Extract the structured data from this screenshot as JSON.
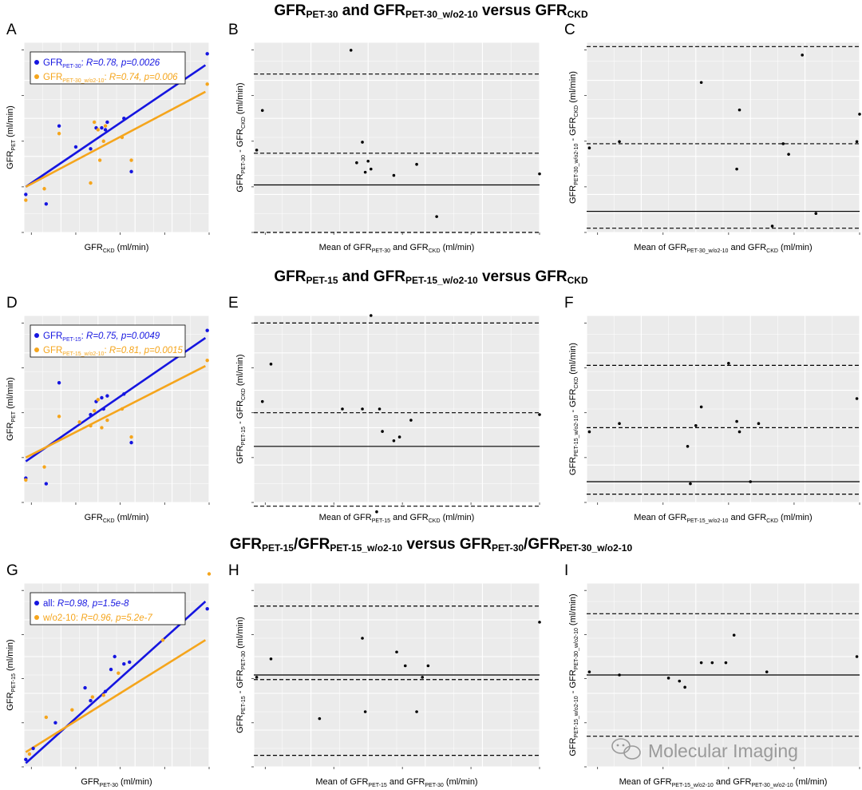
{
  "colors": {
    "series_a": "#1515e0",
    "series_b": "#f5a51c",
    "panel_bg": "#ebebeb",
    "grid": "#ffffff",
    "point": "#000000"
  },
  "watermark": {
    "text": "Molecular Imaging",
    "icon": "wechat-icon"
  },
  "rows": [
    {
      "title": [
        [
          "GFR"
        ],
        [
          "PET-30",
          "sub"
        ],
        [
          " and GFR"
        ],
        [
          "PET-30_w/o2-10",
          "sub"
        ],
        [
          " versus GFR"
        ],
        [
          "CKD",
          "sub"
        ]
      ]
    },
    {
      "title": [
        [
          "GFR"
        ],
        [
          "PET-15",
          "sub"
        ],
        [
          " and GFR"
        ],
        [
          "PET-15_w/o2-10",
          "sub"
        ],
        [
          " versus GFR"
        ],
        [
          "CKD",
          "sub"
        ]
      ]
    },
    {
      "title": [
        [
          "GFR"
        ],
        [
          "PET-15",
          "sub"
        ],
        [
          "/GFR"
        ],
        [
          "PET-15_w/o2-10",
          "sub"
        ],
        [
          " versus GFR"
        ],
        [
          "PET-30",
          "sub"
        ],
        [
          "/GFR"
        ],
        [
          "PET-30_w/o2-10",
          "sub"
        ]
      ]
    }
  ],
  "chart_data": [
    {
      "panel": "A",
      "type": "scatter",
      "xlim": [
        0,
        10
      ],
      "ylim": [
        0,
        10
      ],
      "xlabel": [
        [
          "GFR"
        ],
        [
          "CKD",
          "sub"
        ],
        [
          " (ml/min)"
        ]
      ],
      "ylabel": [
        [
          "GFR"
        ],
        [
          "PET",
          "sub"
        ],
        [
          " (ml/min)"
        ]
      ],
      "legend": {
        "position": "top-left",
        "entries": [
          [
            [
              "GFR"
            ],
            [
              "PET-30",
              "sub"
            ],
            [
              ": "
            ],
            [
              "R=0.78, p=0.0026",
              "it"
            ]
          ],
          [
            [
              "GFR"
            ],
            [
              "PET-30_w/o2-10",
              "sub"
            ],
            [
              ": "
            ],
            [
              "R=0.74, p=0.006",
              "it"
            ]
          ]
        ]
      },
      "series": [
        {
          "color": "series_a",
          "x": [
            0.1,
            1.2,
            1.9,
            2.8,
            3.6,
            3.9,
            4.2,
            4.4,
            4.5,
            5.4,
            5.8,
            9.9
          ],
          "y": [
            2.0,
            1.5,
            5.6,
            4.5,
            4.4,
            5.5,
            5.5,
            5.4,
            5.8,
            6.0,
            3.2,
            9.4
          ],
          "fit": [
            [
              0.1,
              2.4
            ],
            [
              9.8,
              8.8
            ]
          ]
        },
        {
          "color": "series_b",
          "x": [
            0.1,
            1.1,
            1.9,
            3.6,
            3.8,
            4.0,
            4.1,
            4.3,
            4.4,
            5.3,
            5.8,
            9.9
          ],
          "y": [
            1.7,
            2.3,
            5.2,
            2.6,
            5.8,
            5.4,
            3.8,
            4.8,
            5.6,
            5.0,
            3.8,
            7.8
          ],
          "fit": [
            [
              0.1,
              2.4
            ],
            [
              9.8,
              7.4
            ]
          ]
        }
      ]
    },
    {
      "panel": "B",
      "type": "scatter",
      "xlim": [
        0,
        10
      ],
      "ylim": [
        -3,
        9
      ],
      "xlabel": [
        [
          "Mean of GFR"
        ],
        [
          "PET-30",
          "sub"
        ],
        [
          " and GFR"
        ],
        [
          "CKD",
          "sub"
        ],
        [
          " (ml/min)"
        ]
      ],
      "ylabel": [
        [
          "GFR"
        ],
        [
          "PET-30",
          "sub"
        ],
        [
          " - GFR"
        ],
        [
          "CKD",
          "sub"
        ],
        [
          " (ml/min)"
        ]
      ],
      "hlines": [
        {
          "y": 0,
          "style": "solid"
        },
        {
          "y": 2,
          "style": "dashed"
        },
        {
          "y": 7,
          "style": "dashed"
        },
        {
          "y": -3,
          "style": "dashed"
        }
      ],
      "series": [
        {
          "color": "point",
          "x": [
            0.1,
            0.3,
            3.4,
            3.6,
            3.8,
            4.0,
            4.1,
            3.9,
            4.9,
            5.7,
            6.4,
            10.0
          ],
          "y": [
            2.2,
            4.7,
            8.5,
            1.4,
            2.7,
            1.5,
            1.0,
            0.8,
            0.6,
            1.3,
            -2.0,
            0.7
          ]
        }
      ]
    },
    {
      "panel": "C",
      "type": "scatter",
      "xlim": [
        0,
        10
      ],
      "ylim": [
        -1,
        8
      ],
      "xlabel": [
        [
          "Mean of GFR"
        ],
        [
          "PET-30_w/o2-10",
          "sub"
        ],
        [
          " and GFR"
        ],
        [
          "CKD",
          "sub"
        ],
        [
          " (ml/min)"
        ]
      ],
      "ylabel": [
        [
          "GFR"
        ],
        [
          "PET-30_w/o2-10",
          "sub"
        ],
        [
          " - GFR"
        ],
        [
          "CKD",
          "sub"
        ],
        [
          " (ml/min)"
        ]
      ],
      "hlines": [
        {
          "y": 0,
          "style": "solid"
        },
        {
          "y": 3.2,
          "style": "dashed"
        },
        {
          "y": 7.8,
          "style": "dashed"
        },
        {
          "y": -0.8,
          "style": "dashed"
        }
      ],
      "series": [
        {
          "color": "point",
          "x": [
            0.1,
            1.2,
            4.2,
            5.5,
            5.6,
            6.8,
            7.2,
            7.4,
            7.9,
            8.4,
            9.9,
            10.0
          ],
          "y": [
            3.0,
            3.3,
            6.1,
            2.0,
            4.8,
            -0.7,
            3.2,
            2.7,
            7.4,
            -0.1,
            3.3,
            4.6
          ]
        }
      ]
    },
    {
      "panel": "D",
      "type": "scatter",
      "xlim": [
        0,
        10
      ],
      "ylim": [
        0,
        10
      ],
      "xlabel": [
        [
          "GFR"
        ],
        [
          "CKD",
          "sub"
        ],
        [
          " (ml/min)"
        ]
      ],
      "ylabel": [
        [
          "GFR"
        ],
        [
          "PET",
          "sub"
        ],
        [
          " (ml/min)"
        ]
      ],
      "legend": {
        "position": "top-left",
        "entries": [
          [
            [
              "GFR"
            ],
            [
              "PET-15",
              "sub"
            ],
            [
              ": "
            ],
            [
              "R=0.75, p=0.0049",
              "it"
            ]
          ],
          [
            [
              "GFR"
            ],
            [
              "PET-15_w/o2-10",
              "sub"
            ],
            [
              ": "
            ],
            [
              "R=0.81, p=0.0015",
              "it"
            ]
          ]
        ]
      },
      "series": [
        {
          "color": "series_a",
          "x": [
            0.1,
            1.2,
            1.9,
            3.6,
            3.9,
            4.2,
            4.3,
            4.5,
            5.4,
            5.8,
            9.9
          ],
          "y": [
            1.3,
            1.0,
            6.4,
            4.7,
            5.4,
            5.6,
            5.0,
            5.7,
            5.8,
            3.2,
            9.2
          ],
          "fit": [
            [
              0.1,
              2.2
            ],
            [
              9.8,
              8.8
            ]
          ]
        },
        {
          "color": "series_b",
          "x": [
            0.1,
            1.1,
            1.9,
            3.0,
            3.6,
            3.8,
            4.0,
            4.2,
            4.5,
            5.3,
            5.8,
            9.9
          ],
          "y": [
            1.2,
            1.9,
            4.6,
            4.3,
            4.1,
            4.9,
            5.5,
            4.0,
            4.4,
            5.0,
            3.5,
            7.6
          ],
          "fit": [
            [
              0.1,
              2.4
            ],
            [
              9.8,
              7.3
            ]
          ]
        }
      ]
    },
    {
      "panel": "E",
      "type": "scatter",
      "xlim": [
        0,
        10
      ],
      "ylim": [
        -3,
        7
      ],
      "xlabel": [
        [
          "Mean of GFR"
        ],
        [
          "PET-15",
          "sub"
        ],
        [
          " and GFR"
        ],
        [
          "CKD",
          "sub"
        ],
        [
          " (ml/min)"
        ]
      ],
      "ylabel": [
        [
          "GFR"
        ],
        [
          "PET-15",
          "sub"
        ],
        [
          " - GFR"
        ],
        [
          "CKD",
          "sub"
        ],
        [
          " (ml/min)"
        ]
      ],
      "hlines": [
        {
          "y": 0,
          "style": "solid"
        },
        {
          "y": 1.8,
          "style": "dashed"
        },
        {
          "y": 6.6,
          "style": "dashed"
        },
        {
          "y": -3.2,
          "style": "dashed"
        }
      ],
      "series": [
        {
          "color": "point",
          "x": [
            0.3,
            0.6,
            3.1,
            3.8,
            4.1,
            4.4,
            4.5,
            4.9,
            5.1,
            5.5,
            4.3,
            10.0
          ],
          "y": [
            2.4,
            4.4,
            2.0,
            2.0,
            7.0,
            2.0,
            0.8,
            0.3,
            0.5,
            1.4,
            -3.5,
            1.7
          ]
        }
      ]
    },
    {
      "panel": "F",
      "type": "scatter",
      "xlim": [
        0,
        10
      ],
      "ylim": [
        -1,
        8
      ],
      "xlabel": [
        [
          "Mean of GFR"
        ],
        [
          "PET-15_w/o2-10",
          "sub"
        ],
        [
          " and GFR"
        ],
        [
          "CKD",
          "sub"
        ],
        [
          " (ml/min)"
        ]
      ],
      "ylabel": [
        [
          "GFR"
        ],
        [
          "PET-15_w/o2-10",
          "sub"
        ],
        [
          " - GFR"
        ],
        [
          "CKD",
          "sub"
        ],
        [
          " (ml/min)"
        ]
      ],
      "hlines": [
        {
          "y": 0,
          "style": "solid"
        },
        {
          "y": 2.6,
          "style": "dashed"
        },
        {
          "y": 5.6,
          "style": "dashed"
        },
        {
          "y": -0.6,
          "style": "dashed"
        }
      ],
      "series": [
        {
          "color": "point",
          "x": [
            0.1,
            1.2,
            3.7,
            3.8,
            4.0,
            4.2,
            5.2,
            5.5,
            5.6,
            6.0,
            6.3,
            9.9
          ],
          "y": [
            2.4,
            2.8,
            1.7,
            -0.1,
            2.7,
            3.6,
            5.7,
            2.9,
            2.4,
            0.0,
            2.8,
            4.0
          ]
        }
      ]
    },
    {
      "panel": "G",
      "type": "scatter",
      "xlim": [
        0,
        10
      ],
      "ylim": [
        0,
        10
      ],
      "xlabel": [
        [
          "GFR"
        ],
        [
          "PET-30",
          "sub"
        ],
        [
          " (ml/min)"
        ]
      ],
      "ylabel": [
        [
          "GFR"
        ],
        [
          "PET-15",
          "sub"
        ],
        [
          " (ml/min)"
        ]
      ],
      "legend": {
        "position": "top-left",
        "entries": [
          [
            [
              "all: "
            ],
            [
              "R=0.98, p=1.5e-8",
              "it"
            ]
          ],
          [
            [
              "w/o2-10: "
            ],
            [
              "R=0.96, p=5.2e-7",
              "it"
            ]
          ]
        ]
      },
      "series": [
        {
          "color": "series_a",
          "x": [
            0.1,
            0.5,
            1.7,
            3.3,
            3.6,
            4.4,
            4.7,
            4.9,
            5.4,
            5.7,
            9.9
          ],
          "y": [
            0.4,
            1.0,
            2.4,
            4.3,
            3.6,
            4.1,
            5.3,
            6.0,
            5.6,
            5.7,
            8.6
          ],
          "fit": [
            [
              0.1,
              0.2
            ],
            [
              9.8,
              9.0
            ]
          ]
        },
        {
          "color": "series_b",
          "x": [
            0.3,
            1.2,
            2.6,
            3.7,
            4.3,
            5.1,
            7.5,
            10.0
          ],
          "y": [
            0.7,
            2.7,
            3.1,
            3.8,
            3.9,
            5.1,
            6.9,
            10.5
          ],
          "fit": [
            [
              0.1,
              0.8
            ],
            [
              9.8,
              6.9
            ]
          ]
        }
      ]
    },
    {
      "panel": "H",
      "type": "scatter",
      "xlim": [
        0,
        10
      ],
      "ylim": [
        -4,
        4
      ],
      "xlabel": [
        [
          "Mean of GFR"
        ],
        [
          "PET-15",
          "sub"
        ],
        [
          " and GFR"
        ],
        [
          "PET-30",
          "sub"
        ],
        [
          " (ml/min)"
        ]
      ],
      "ylabel": [
        [
          "GFR"
        ],
        [
          "PET-15",
          "sub"
        ],
        [
          " - GFR"
        ],
        [
          "PET-30",
          "sub"
        ],
        [
          " (ml/min)"
        ]
      ],
      "hlines": [
        {
          "y": 0,
          "style": "solid"
        },
        {
          "y": -0.2,
          "style": "dashed"
        },
        {
          "y": 3.0,
          "style": "dashed"
        },
        {
          "y": -3.5,
          "style": "dashed"
        }
      ],
      "series": [
        {
          "color": "point",
          "x": [
            0.1,
            0.6,
            2.3,
            3.8,
            3.9,
            5.0,
            5.3,
            5.7,
            5.9,
            6.1,
            10.0
          ],
          "y": [
            -0.1,
            0.7,
            -1.9,
            1.6,
            -1.6,
            1.0,
            0.4,
            -1.6,
            -0.1,
            0.4,
            2.3
          ]
        }
      ]
    },
    {
      "panel": "I",
      "type": "scatter",
      "xlim": [
        0,
        10
      ],
      "ylim": [
        -3,
        3
      ],
      "xlabel": [
        [
          "Mean of GFR"
        ],
        [
          "PET-15_w/o2-10",
          "sub"
        ],
        [
          " and GFR"
        ],
        [
          "PET-30_w/o2-10",
          "sub"
        ],
        [
          " (ml/min)"
        ]
      ],
      "ylabel": [
        [
          "GFR"
        ],
        [
          "PET-15_w/o2-10",
          "sub"
        ],
        [
          " - GFR"
        ],
        [
          "PET-30_w/o2-10",
          "sub"
        ],
        [
          " (ml/min)"
        ]
      ],
      "hlines": [
        {
          "y": 0,
          "style": "solid"
        },
        {
          "y": 2.0,
          "style": "dashed"
        },
        {
          "y": -2.0,
          "style": "dashed"
        }
      ],
      "series": [
        {
          "color": "point",
          "x": [
            0.1,
            1.2,
            3.0,
            3.4,
            3.6,
            4.2,
            4.6,
            5.1,
            5.4,
            6.6,
            9.9
          ],
          "y": [
            0.1,
            0.0,
            -0.1,
            -0.2,
            -0.4,
            0.4,
            0.4,
            0.4,
            1.3,
            0.1,
            0.6
          ]
        }
      ]
    }
  ]
}
